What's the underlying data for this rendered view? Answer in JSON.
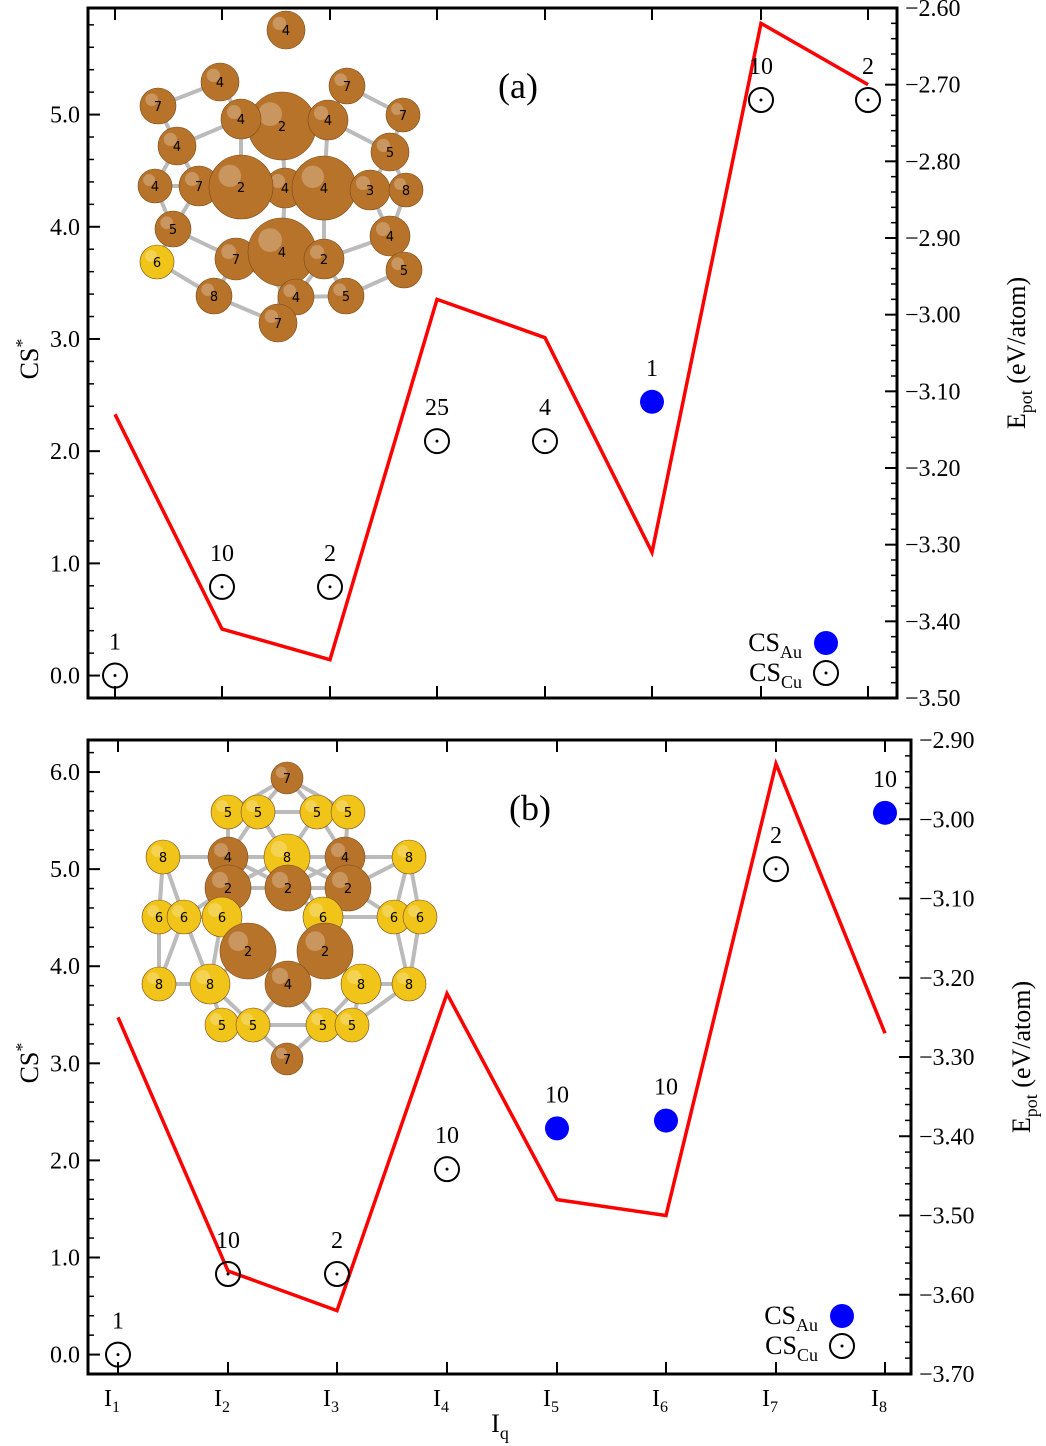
{
  "figure": {
    "x_label": "I",
    "x_label_sub": "q",
    "y_left_label": "CS",
    "y_left_sup": "*",
    "y_right_label": "E",
    "y_right_sub": "pot",
    "y_right_unit": " (eV/atom)",
    "legend_cs": "CS",
    "legend_au_sub": "Au",
    "legend_cu_sub": "Cu"
  },
  "colors": {
    "energy_line": "#ff0000",
    "au_marker": "#0000ff",
    "cu_marker": "#000000",
    "atom_cu": "#b8732a",
    "atom_au": "#f0c419",
    "bond": "#bbbbbb"
  },
  "chart_data": [
    {
      "type": "scatter+line",
      "panel_label": "(a)",
      "categories": [
        "I1",
        "I2",
        "I3",
        "I4",
        "I5",
        "I6",
        "I7",
        "I8"
      ],
      "x_tick_labels": [
        {
          "main": "I",
          "sub": "1"
        },
        {
          "main": "I",
          "sub": "2"
        },
        {
          "main": "I",
          "sub": "3"
        },
        {
          "main": "I",
          "sub": "4"
        },
        {
          "main": "I",
          "sub": "5"
        },
        {
          "main": "I",
          "sub": "6"
        },
        {
          "main": "I",
          "sub": "7"
        },
        {
          "main": "I",
          "sub": "8"
        }
      ],
      "ylim_left": [
        -0.2,
        5.95
      ],
      "yticks_left": [
        "0.0",
        "1.0",
        "2.0",
        "3.0",
        "4.0",
        "5.0"
      ],
      "ylim_right": [
        -3.5,
        -2.6
      ],
      "yticks_right": [
        "−3.50",
        "−3.40",
        "−3.30",
        "−3.20",
        "−3.10",
        "−3.00",
        "−2.90",
        "−2.80",
        "−2.70",
        "−2.60"
      ],
      "series": [
        {
          "kind": "cs",
          "values": [
            0.0,
            0.79,
            0.79,
            2.09,
            2.09,
            2.44,
            5.13,
            5.13
          ],
          "element": [
            "Cu",
            "Cu",
            "Cu",
            "Cu",
            "Cu",
            "Au",
            "Cu",
            "Cu"
          ],
          "labels": [
            "1",
            "10",
            "2",
            "25",
            "4",
            "1",
            "10",
            "2"
          ]
        },
        {
          "kind": "epot",
          "values": [
            -3.13,
            -3.41,
            -3.45,
            -2.98,
            -3.03,
            -3.31,
            -2.62,
            -2.7
          ]
        }
      ]
    },
    {
      "type": "scatter+line",
      "panel_label": "(b)",
      "categories": [
        "I1",
        "I2",
        "I3",
        "I4",
        "I5",
        "I6",
        "I7",
        "I8"
      ],
      "x_tick_labels": [
        {
          "main": "I",
          "sub": "1"
        },
        {
          "main": "I",
          "sub": "2"
        },
        {
          "main": "I",
          "sub": "3"
        },
        {
          "main": "I",
          "sub": "4"
        },
        {
          "main": "I",
          "sub": "5"
        },
        {
          "main": "I",
          "sub": "6"
        },
        {
          "main": "I",
          "sub": "7"
        },
        {
          "main": "I",
          "sub": "8"
        }
      ],
      "ylim_left": [
        -0.2,
        6.33
      ],
      "yticks_left": [
        "0.0",
        "1.0",
        "2.0",
        "3.0",
        "4.0",
        "5.0",
        "6.0"
      ],
      "ylim_right": [
        -3.7,
        -2.9
      ],
      "yticks_right": [
        "−3.70",
        "−3.60",
        "−3.50",
        "−3.40",
        "−3.30",
        "−3.20",
        "−3.10",
        "−3.00",
        "−2.90"
      ],
      "series": [
        {
          "kind": "cs",
          "values": [
            0.0,
            0.83,
            0.83,
            1.91,
            2.33,
            2.41,
            5.0,
            5.58
          ],
          "element": [
            "Cu",
            "Cu",
            "Cu",
            "Cu",
            "Au",
            "Au",
            "Cu",
            "Au"
          ],
          "labels": [
            "1",
            "10",
            "2",
            "10",
            "10",
            "10",
            "2",
            "10"
          ]
        },
        {
          "kind": "epot",
          "values": [
            -3.25,
            -3.57,
            -3.62,
            -3.22,
            -3.48,
            -3.5,
            -2.93,
            -3.27
          ]
        }
      ]
    }
  ],
  "inset_a": {
    "atoms": [
      {
        "t": "4",
        "el": "Cu"
      },
      {
        "t": "7",
        "el": "Cu"
      },
      {
        "t": "4",
        "el": "Cu"
      },
      {
        "t": "7",
        "el": "Cu"
      },
      {
        "t": "4",
        "el": "Cu"
      },
      {
        "t": "2",
        "el": "Cu"
      },
      {
        "t": "4",
        "el": "Cu"
      },
      {
        "t": "7",
        "el": "Cu"
      },
      {
        "t": "4",
        "el": "Cu"
      },
      {
        "t": "4",
        "el": "Cu"
      },
      {
        "t": "5",
        "el": "Cu"
      },
      {
        "t": "4",
        "el": "Cu"
      },
      {
        "t": "7",
        "el": "Cu"
      },
      {
        "t": "2",
        "el": "Cu"
      },
      {
        "t": "4",
        "el": "Cu"
      },
      {
        "t": "3",
        "el": "Cu"
      },
      {
        "t": "8",
        "el": "Cu"
      },
      {
        "t": "5",
        "el": "Cu"
      },
      {
        "t": "4",
        "el": "Cu"
      },
      {
        "t": "6",
        "el": "Au"
      },
      {
        "t": "7",
        "el": "Cu"
      },
      {
        "t": "4",
        "el": "Cu"
      },
      {
        "t": "2",
        "el": "Cu"
      },
      {
        "t": "5",
        "el": "Cu"
      },
      {
        "t": "8",
        "el": "Cu"
      },
      {
        "t": "4",
        "el": "Cu"
      },
      {
        "t": "5",
        "el": "Cu"
      },
      {
        "t": "7",
        "el": "Cu"
      }
    ]
  },
  "inset_b": {
    "atoms": [
      {
        "t": "7",
        "el": "Cu"
      },
      {
        "t": "5",
        "el": "Au"
      },
      {
        "t": "5",
        "el": "Au"
      },
      {
        "t": "5",
        "el": "Au"
      },
      {
        "t": "5",
        "el": "Au"
      },
      {
        "t": "8",
        "el": "Au"
      },
      {
        "t": "4",
        "el": "Cu"
      },
      {
        "t": "8",
        "el": "Au"
      },
      {
        "t": "4",
        "el": "Cu"
      },
      {
        "t": "8",
        "el": "Au"
      },
      {
        "t": "2",
        "el": "Cu"
      },
      {
        "t": "2",
        "el": "Cu"
      },
      {
        "t": "2",
        "el": "Cu"
      },
      {
        "t": "6",
        "el": "Au"
      },
      {
        "t": "6",
        "el": "Au"
      },
      {
        "t": "6",
        "el": "Au"
      },
      {
        "t": "6",
        "el": "Au"
      },
      {
        "t": "6",
        "el": "Au"
      },
      {
        "t": "6",
        "el": "Au"
      },
      {
        "t": "2",
        "el": "Cu"
      },
      {
        "t": "2",
        "el": "Cu"
      },
      {
        "t": "8",
        "el": "Au"
      },
      {
        "t": "8",
        "el": "Au"
      },
      {
        "t": "4",
        "el": "Cu"
      },
      {
        "t": "8",
        "el": "Au"
      },
      {
        "t": "8",
        "el": "Au"
      },
      {
        "t": "5",
        "el": "Au"
      },
      {
        "t": "5",
        "el": "Au"
      },
      {
        "t": "5",
        "el": "Au"
      },
      {
        "t": "5",
        "el": "Au"
      },
      {
        "t": "7",
        "el": "Cu"
      }
    ]
  }
}
